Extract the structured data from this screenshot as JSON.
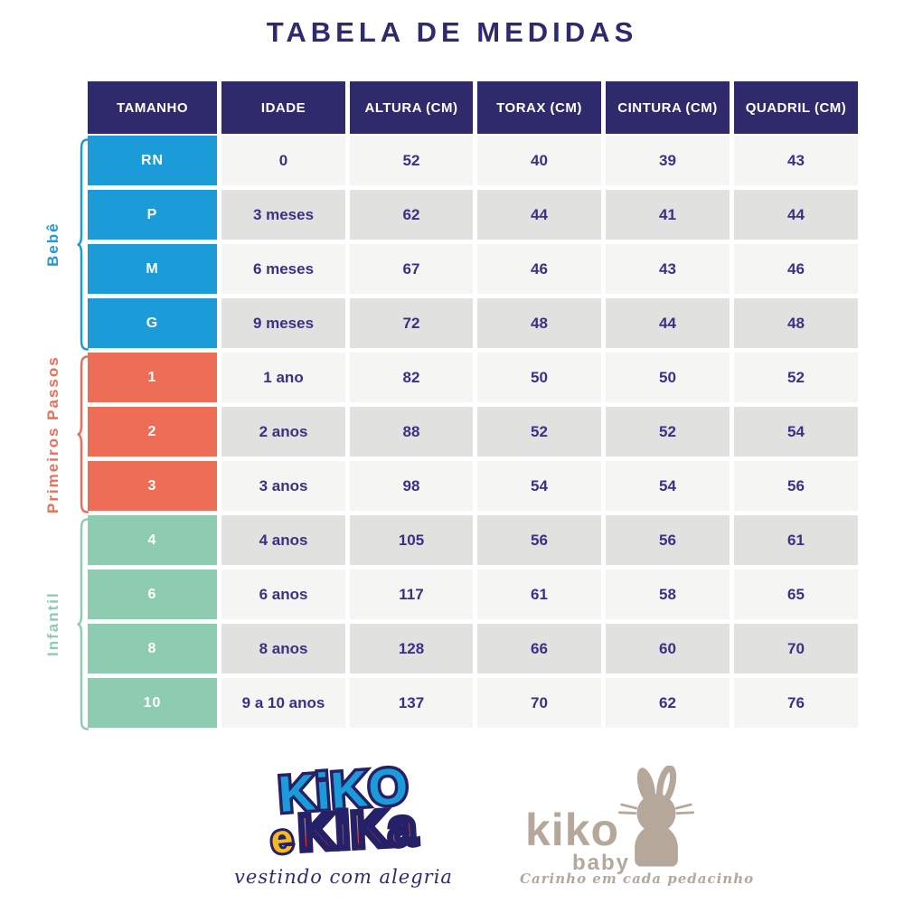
{
  "title": "TABELA DE MEDIDAS",
  "colors": {
    "header_bg": "#2f2a6b",
    "title_text": "#2e2a6e",
    "cell_text": "#3a3184",
    "row_light": "#f5f5f4",
    "row_gray": "#e1e1e0",
    "bebe": "#1b9cd8",
    "primeiros_passos": "#ed6d57",
    "infantil": "#8eccb2",
    "kiko_baby_taupe": "#b5a89b"
  },
  "chart_data": {
    "type": "table",
    "title": "TABELA DE MEDIDAS",
    "columns": [
      "TAMANHO",
      "IDADE",
      "ALTURA (CM)",
      "TORAX (CM)",
      "CINTURA (CM)",
      "QUADRIL (CM)"
    ],
    "row_groups": [
      {
        "group": "Bebê",
        "color": "#1b9cd8",
        "rows": [
          [
            "RN",
            "0",
            "52",
            "40",
            "39",
            "43"
          ],
          [
            "P",
            "3 meses",
            "62",
            "44",
            "41",
            "44"
          ],
          [
            "M",
            "6 meses",
            "67",
            "46",
            "43",
            "46"
          ],
          [
            "G",
            "9 meses",
            "72",
            "48",
            "44",
            "48"
          ]
        ]
      },
      {
        "group": "Primeiros Passos",
        "color": "#ed6d57",
        "rows": [
          [
            "1",
            "1 ano",
            "82",
            "50",
            "50",
            "52"
          ],
          [
            "2",
            "2 anos",
            "88",
            "52",
            "52",
            "54"
          ],
          [
            "3",
            "3 anos",
            "98",
            "54",
            "54",
            "56"
          ]
        ]
      },
      {
        "group": "Infantil",
        "color": "#8eccb2",
        "rows": [
          [
            "4",
            "4 anos",
            "105",
            "56",
            "56",
            "61"
          ],
          [
            "6",
            "6 anos",
            "117",
            "61",
            "58",
            "65"
          ],
          [
            "8",
            "8 anos",
            "128",
            "66",
            "60",
            "70"
          ],
          [
            "10",
            "9 a 10 anos",
            "137",
            "70",
            "62",
            "76"
          ]
        ]
      }
    ]
  },
  "logos": {
    "kiko_e_kika": {
      "word1": "KiKO",
      "word2": "e",
      "word3": "KiKa",
      "tagline": "vestindo com alegria"
    },
    "kiko_baby": {
      "name": "kiko",
      "sub": "baby",
      "tagline": "Carinho em cada pedacinho"
    }
  }
}
